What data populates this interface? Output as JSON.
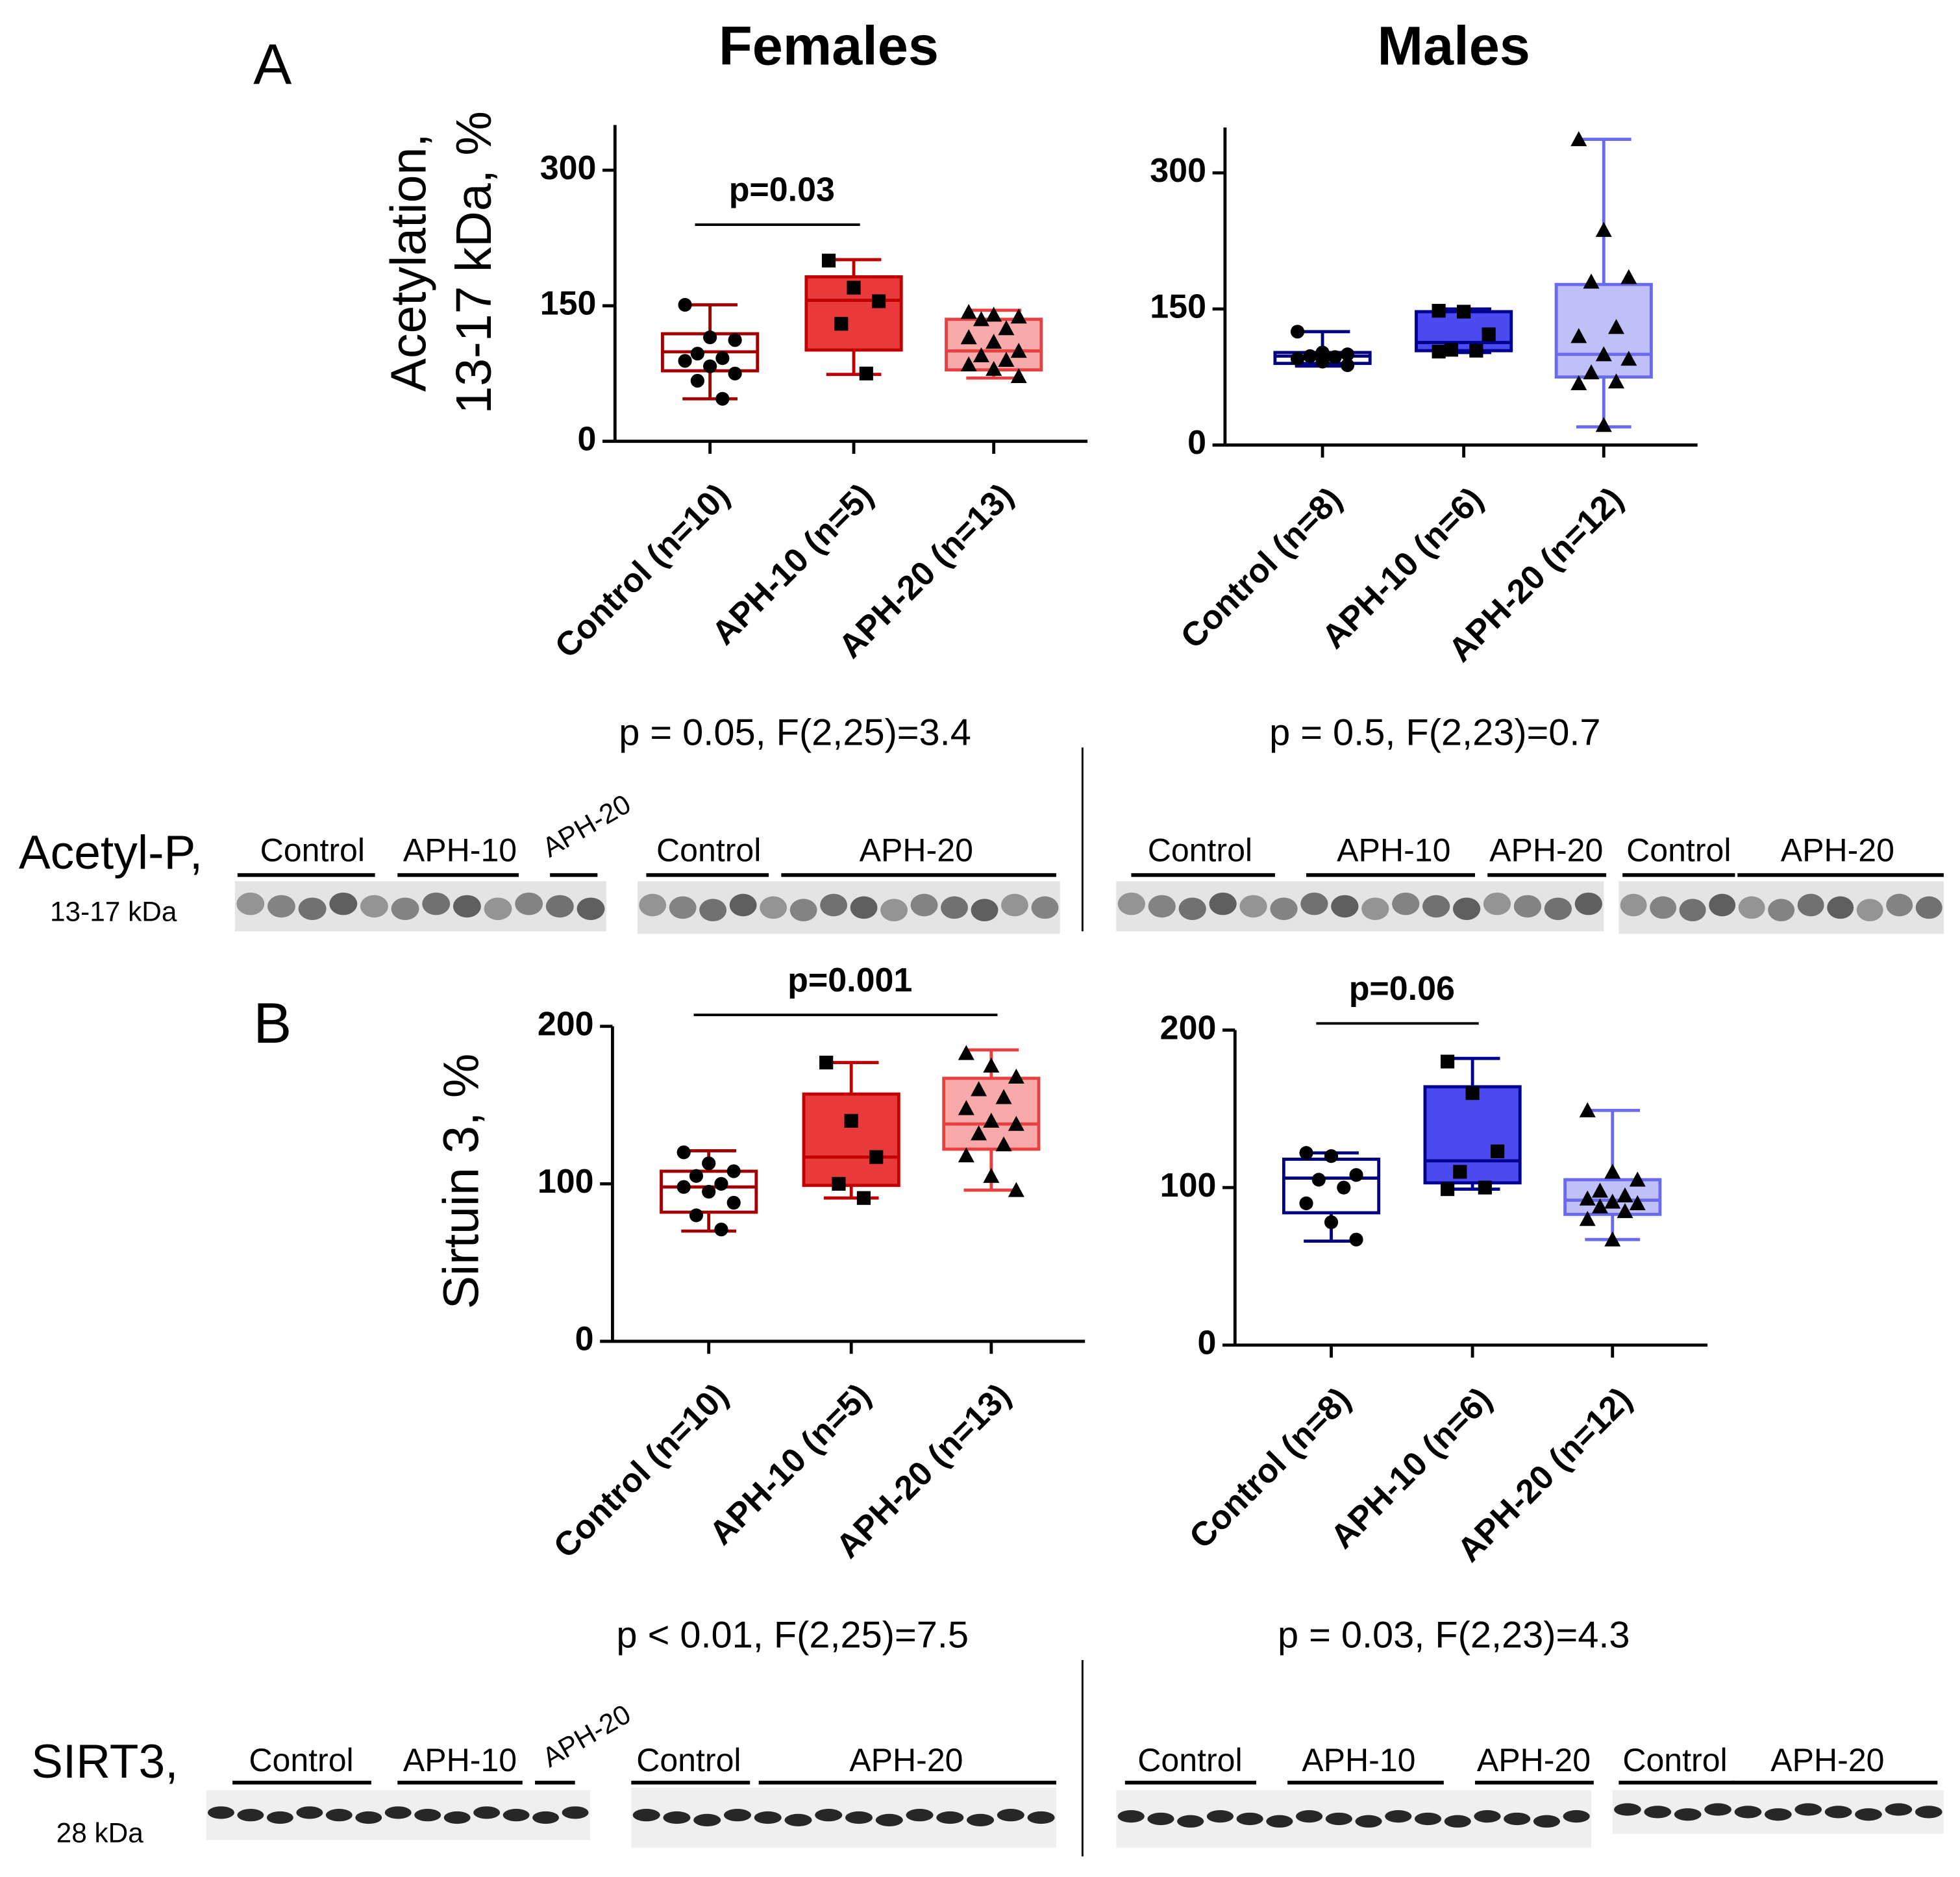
{
  "columns": [
    "Females",
    "Males"
  ],
  "panels": [
    "A",
    "B"
  ],
  "chart_data": [
    {
      "type": "box",
      "ylabel": [
        "Acetylation,",
        "13-17 kDa, %"
      ],
      "ylim": [
        0,
        350
      ],
      "yticks": [
        0,
        150,
        300
      ],
      "categories": [
        "Control (n=10)",
        "APH-10 (n=5)",
        "APH-20 (n=13)"
      ],
      "boxes": [
        {
          "marker": "circle",
          "color": "#a00000",
          "fill": "#ffffff",
          "min": 47,
          "q1": 78,
          "median": 99,
          "q3": 119,
          "max": 151,
          "points": [
            151,
            115,
            112,
            97,
            92,
            89,
            83,
            75,
            67,
            47
          ]
        },
        {
          "marker": "square",
          "color": "#c00000",
          "fill": "#e83a3a",
          "min": 74,
          "q1": 101,
          "median": 156,
          "q3": 182,
          "max": 201,
          "points": [
            200,
            170,
            155,
            130,
            75
          ]
        },
        {
          "marker": "triangle",
          "color": "#e84040",
          "fill": "#f8a9a9",
          "min": 70,
          "q1": 79,
          "median": 100,
          "q3": 135,
          "max": 145,
          "points": [
            143,
            140,
            138,
            135,
            125,
            115,
            110,
            100,
            95,
            90,
            85,
            80,
            72
          ]
        }
      ],
      "bracket": {
        "label": "p=0.03",
        "between": [
          0,
          1
        ]
      },
      "stats": "p = 0.05, F(2,25)=3.4"
    },
    {
      "type": "box",
      "ylim": [
        0,
        350
      ],
      "yticks": [
        0,
        150,
        300
      ],
      "categories": [
        "Control (n=8)",
        "APH-10 (n=6)",
        "APH-20 (n=12)"
      ],
      "boxes": [
        {
          "marker": "circle",
          "color": "#000080",
          "fill": "#ffffff",
          "min": 87,
          "q1": 90,
          "median": 98,
          "q3": 102,
          "max": 125,
          "points": [
            125,
            102,
            100,
            98,
            97,
            95,
            92,
            88
          ]
        },
        {
          "marker": "square",
          "color": "#000090",
          "fill": "#4a4af0",
          "min": 102,
          "q1": 104,
          "median": 113,
          "q3": 147,
          "max": 150,
          "points": [
            148,
            147,
            122,
            105,
            104,
            103
          ]
        },
        {
          "marker": "triangle",
          "color": "#6a6af0",
          "fill": "#c0c0f8",
          "min": 20,
          "q1": 75,
          "median": 100,
          "q3": 177,
          "max": 337,
          "points": [
            337,
            237,
            185,
            180,
            130,
            120,
            100,
            95,
            80,
            70,
            68,
            22
          ]
        }
      ],
      "stats": "p = 0.5, F(2,23)=0.7"
    },
    {
      "type": "box",
      "ylabel": [
        "Sirtuin 3, %"
      ],
      "ylim": [
        0,
        200
      ],
      "yticks": [
        0,
        100,
        200
      ],
      "categories": [
        "Control (n=10)",
        "APH-10 (n=5)",
        "APH-20 (n=13)"
      ],
      "boxes": [
        {
          "marker": "circle",
          "color": "#a00000",
          "fill": "#ffffff",
          "min": 70,
          "q1": 82,
          "median": 98,
          "q3": 108,
          "max": 121,
          "points": [
            120,
            113,
            108,
            105,
            100,
            98,
            95,
            88,
            80,
            71
          ]
        },
        {
          "marker": "square",
          "color": "#c00000",
          "fill": "#e83a3a",
          "min": 91,
          "q1": 99,
          "median": 117,
          "q3": 157,
          "max": 177,
          "points": [
            177,
            140,
            117,
            100,
            91
          ]
        },
        {
          "marker": "triangle",
          "color": "#e84040",
          "fill": "#f8a9a9",
          "min": 96,
          "q1": 122,
          "median": 138,
          "q3": 167,
          "max": 185,
          "points": [
            183,
            175,
            168,
            160,
            155,
            148,
            140,
            138,
            132,
            125,
            118,
            105,
            96
          ]
        }
      ],
      "bracket": {
        "label": "p=0.001",
        "between": [
          0,
          2
        ]
      },
      "stats": "p < 0.01, F(2,25)=7.5"
    },
    {
      "type": "box",
      "ylim": [
        0,
        200
      ],
      "yticks": [
        0,
        100,
        200
      ],
      "categories": [
        "Control (n=8)",
        "APH-10 (n=6)",
        "APH-20 (n=12)"
      ],
      "boxes": [
        {
          "marker": "circle",
          "color": "#000080",
          "fill": "#ffffff",
          "min": 66,
          "q1": 84,
          "median": 106,
          "q3": 118,
          "max": 122,
          "points": [
            122,
            120,
            108,
            105,
            100,
            90,
            78,
            67
          ]
        },
        {
          "marker": "square",
          "color": "#000090",
          "fill": "#4a4af0",
          "min": 99,
          "q1": 103,
          "median": 117,
          "q3": 164,
          "max": 182,
          "points": [
            180,
            160,
            123,
            110,
            100,
            99
          ]
        },
        {
          "marker": "triangle",
          "color": "#6a6af0",
          "fill": "#c0c0f8",
          "min": 67,
          "q1": 83,
          "median": 92,
          "q3": 105,
          "max": 149,
          "points": [
            149,
            110,
            105,
            98,
            95,
            93,
            91,
            90,
            88,
            85,
            80,
            67
          ]
        }
      ],
      "bracket": {
        "label": "p=0.06",
        "between": [
          0,
          1
        ]
      },
      "stats": "p = 0.03, F(2,23)=4.3"
    }
  ],
  "blots": [
    {
      "label": "Acetyl-P,",
      "size": "13-17 kDa",
      "lanes": [
        "Control",
        "APH-10",
        "APH-20",
        "Control",
        "APH-20",
        "Control",
        "APH-10",
        "APH-20",
        "Control",
        "APH-20"
      ]
    },
    {
      "label": "SIRT3,",
      "size": "28 kDa",
      "lanes": [
        "Control",
        "APH-10",
        "APH-20",
        "Control",
        "APH-20",
        "Control",
        "APH-10",
        "APH-20",
        "Control",
        "APH-20"
      ]
    }
  ]
}
